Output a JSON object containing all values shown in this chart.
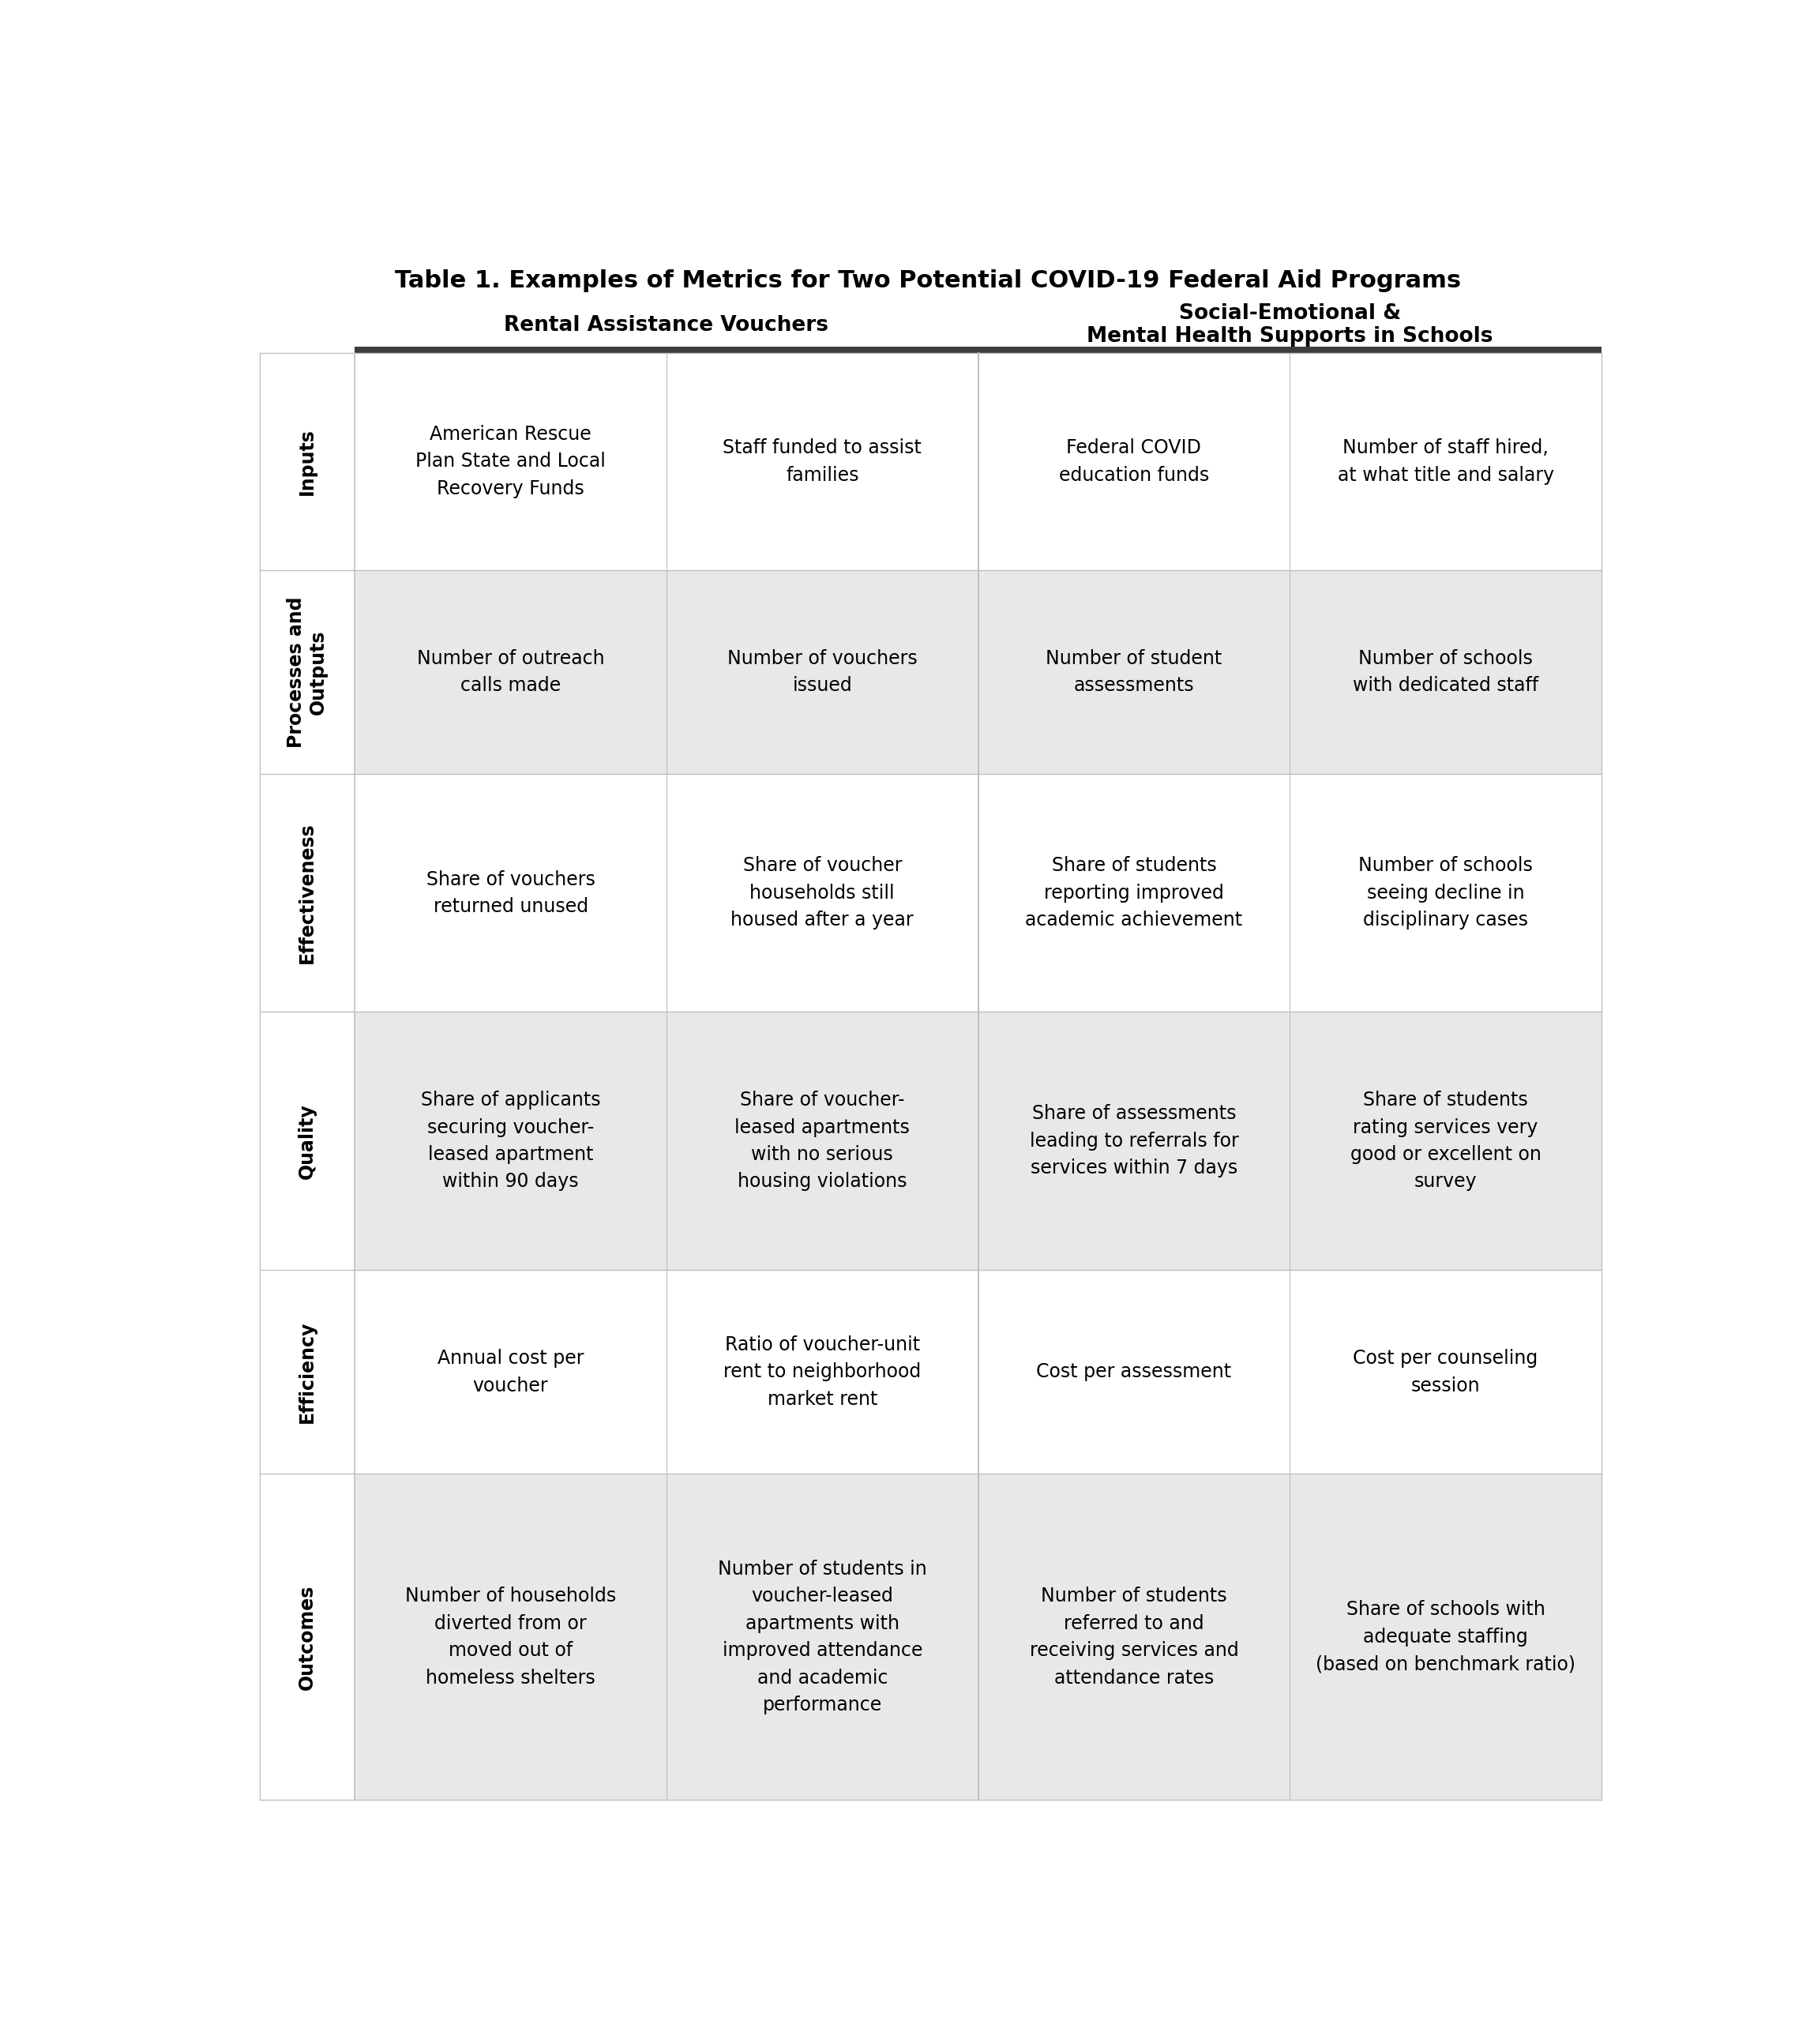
{
  "title": "Table 1. Examples of Metrics for Two Potential COVID-19 Federal Aid Programs",
  "col_header1": "Rental Assistance Vouchers",
  "col_header2_line1": "Social-Emotional &",
  "col_header2_line2": "Mental Health Supports in Schools",
  "row_headers": [
    "Inputs",
    "Processes and\nOutputs",
    "Effectiveness",
    "Quality",
    "Efficiency",
    "Outcomes"
  ],
  "cells": [
    [
      "American Rescue\nPlan State and Local\nRecovery Funds",
      "Staff funded to assist\nfamilies",
      "Federal COVID\neducation funds",
      "Number of staff hired,\nat what title and salary"
    ],
    [
      "Number of outreach\ncalls made",
      "Number of vouchers\nissued",
      "Number of student\nassessments",
      "Number of schools\nwith dedicated staff"
    ],
    [
      "Share of vouchers\nreturned unused",
      "Share of voucher\nhouseholds still\nhoused after a year",
      "Share of students\nreporting improved\nacademic achievement",
      "Number of schools\nseeing decline in\ndisciplinary cases"
    ],
    [
      "Share of applicants\nsecuring voucher-\nleased apartment\nwithin 90 days",
      "Share of voucher-\nleased apartments\nwith no serious\nhousing violations",
      "Share of assessments\nleading to referrals for\nservices within 7 days",
      "Share of students\nrating services very\ngood or excellent on\nsurvey"
    ],
    [
      "Annual cost per\nvoucher",
      "Ratio of voucher-unit\nrent to neighborhood\nmarket rent",
      "Cost per assessment",
      "Cost per counseling\nsession"
    ],
    [
      "Number of households\ndiverted from or\nmoved out of\nhomeless shelters",
      "Number of students in\nvoucher-leased\napartments with\nimproved attendance\nand academic\nperformance",
      "Number of students\nreferred to and\nreceiving services and\nattendance rates",
      "Share of schools with\nadequate staffing\n(based on benchmark ratio)"
    ]
  ],
  "row_bg_colors": [
    "#ffffff",
    "#e8e8e8",
    "#ffffff",
    "#e8e8e8",
    "#ffffff",
    "#e8e8e8"
  ],
  "header_bar_color": "#3d3d3d",
  "divider_color": "#c0c0c0",
  "title_fontsize": 22,
  "header_fontsize": 19,
  "cell_fontsize": 17,
  "row_label_fontsize": 17,
  "row_heights_rel": [
    3.2,
    3.0,
    3.5,
    3.8,
    3.0,
    4.8
  ]
}
